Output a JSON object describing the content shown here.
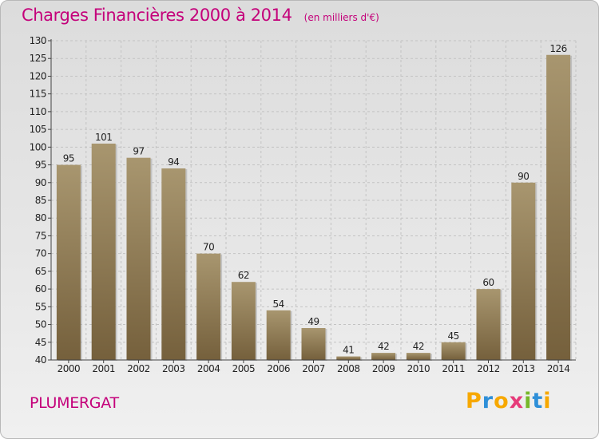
{
  "header": {
    "title": "Charges Financières 2000 à 2014",
    "subtitle": "(en milliers d'€)"
  },
  "footer": {
    "city": "PLUMERGAT",
    "logo_letters": [
      "P",
      "r",
      "o",
      "x",
      "i",
      "t",
      "i"
    ],
    "logo_colors": [
      "#f7a800",
      "#2e8fd8",
      "#f7a800",
      "#e63b7a",
      "#77b82a",
      "#2e8fd8",
      "#f7a800"
    ]
  },
  "colors": {
    "bar_light": "#a8966f",
    "bar_dark": "#75603c",
    "accent": "#c4007a"
  },
  "chart_data": {
    "type": "bar",
    "title": "Charges Financières 2000 à 2014",
    "subtitle": "(en milliers d'€)",
    "categories": [
      "2000",
      "2001",
      "2002",
      "2003",
      "2004",
      "2005",
      "2006",
      "2007",
      "2008",
      "2009",
      "2010",
      "2011",
      "2012",
      "2013",
      "2014"
    ],
    "values": [
      95,
      101,
      97,
      94,
      70,
      62,
      54,
      49,
      41,
      42,
      42,
      45,
      60,
      90,
      126
    ],
    "ylim": [
      40,
      130
    ],
    "yticks": [
      40,
      45,
      50,
      55,
      60,
      65,
      70,
      75,
      80,
      85,
      90,
      95,
      100,
      105,
      110,
      115,
      120,
      125,
      130
    ],
    "grid": true,
    "xlabel": "",
    "ylabel": ""
  }
}
